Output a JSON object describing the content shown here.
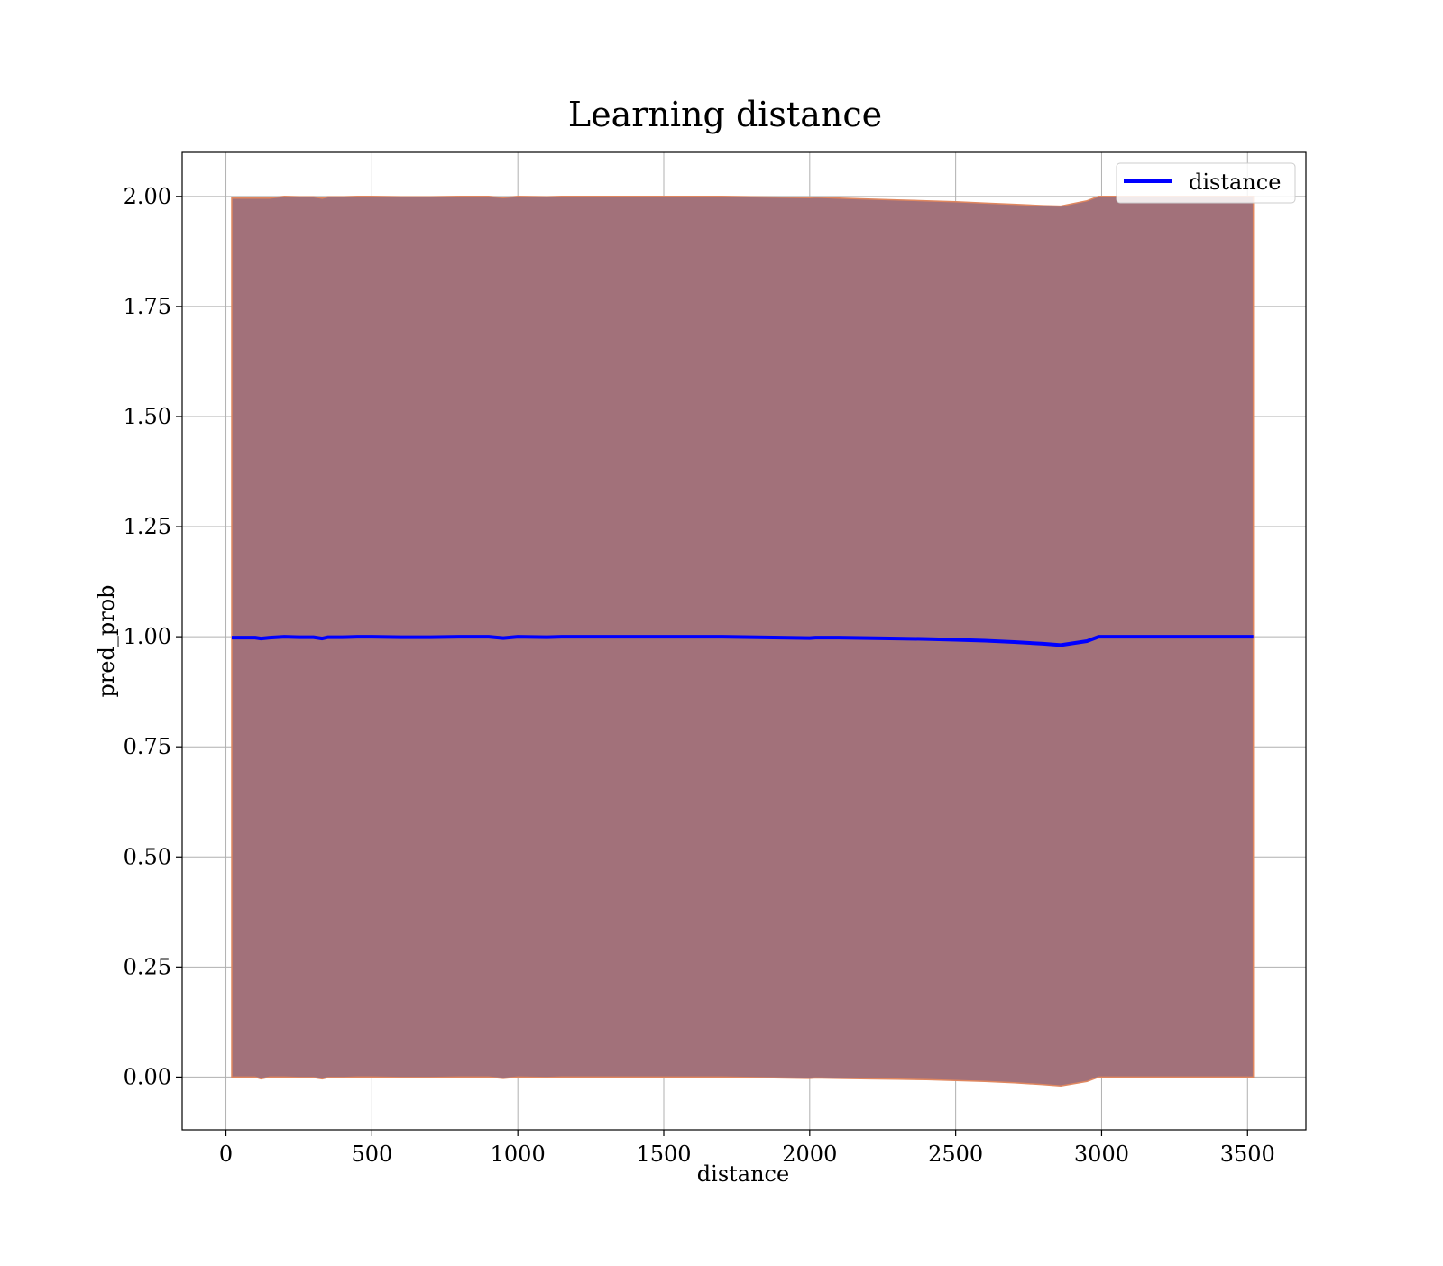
{
  "chart_data": {
    "type": "line",
    "title": "Learning distance",
    "xlabel": "distance",
    "ylabel": "pred_prob",
    "xlim": [
      -150,
      3700
    ],
    "ylim": [
      -0.12,
      2.1
    ],
    "xticks": [
      0,
      500,
      1000,
      1500,
      2000,
      2500,
      3000,
      3500
    ],
    "xtick_labels": [
      "0",
      "500",
      "1000",
      "1500",
      "2000",
      "2500",
      "3000",
      "3500"
    ],
    "yticks": [
      0.0,
      0.25,
      0.5,
      0.75,
      1.0,
      1.25,
      1.5,
      1.75,
      2.0
    ],
    "ytick_labels": [
      "0.00",
      "0.25",
      "0.50",
      "0.75",
      "1.00",
      "1.25",
      "1.50",
      "1.75",
      "2.00"
    ],
    "grid": true,
    "legend": {
      "position": "top-right",
      "entries": [
        "distance"
      ]
    },
    "colors": {
      "line": "#0000ff",
      "band_fill": "#a2717a",
      "band_edge": "#e0875f",
      "grid": "#b0b0b0"
    },
    "series": [
      {
        "name": "distance",
        "x": [
          20,
          100,
          120,
          150,
          200,
          250,
          300,
          330,
          350,
          400,
          450,
          500,
          600,
          700,
          800,
          900,
          950,
          1000,
          1100,
          1150,
          1300,
          1500,
          1700,
          1800,
          1900,
          2000,
          2020,
          2100,
          2200,
          2300,
          2400,
          2500,
          2600,
          2700,
          2800,
          2860,
          2950,
          2990,
          3100,
          3200,
          3300,
          3400,
          3500,
          3520
        ],
        "y": [
          0.998,
          0.998,
          0.996,
          0.998,
          1.0,
          0.999,
          0.999,
          0.996,
          0.999,
          0.999,
          1.0,
          1.0,
          0.999,
          0.999,
          1.0,
          1.0,
          0.997,
          1.0,
          0.999,
          1.0,
          1.0,
          1.0,
          1.0,
          0.999,
          0.998,
          0.997,
          0.998,
          0.998,
          0.997,
          0.996,
          0.995,
          0.993,
          0.991,
          0.988,
          0.984,
          0.981,
          0.99,
          1.0,
          1.0,
          1.0,
          1.0,
          1.0,
          1.0,
          1.0
        ]
      }
    ],
    "band": {
      "lower": [
        0.0,
        0.0,
        -0.004,
        0.0,
        0.0,
        -0.001,
        -0.001,
        -0.004,
        -0.001,
        -0.001,
        0.0,
        0.0,
        -0.001,
        -0.001,
        0.0,
        0.0,
        -0.003,
        0.0,
        -0.001,
        0.0,
        0.0,
        0.0,
        0.0,
        -0.001,
        -0.002,
        -0.003,
        -0.002,
        -0.003,
        -0.004,
        -0.005,
        -0.006,
        -0.008,
        -0.01,
        -0.013,
        -0.017,
        -0.02,
        -0.01,
        0.0,
        0.0,
        0.0,
        0.0,
        0.0,
        0.0,
        0.0
      ],
      "upper": [
        1.996,
        1.996,
        1.996,
        1.996,
        2.0,
        1.999,
        1.999,
        1.996,
        1.999,
        1.999,
        2.0,
        2.0,
        1.999,
        1.999,
        2.0,
        2.0,
        1.997,
        2.0,
        1.999,
        2.0,
        2.0,
        2.0,
        2.0,
        1.999,
        1.998,
        1.997,
        1.998,
        1.996,
        1.994,
        1.992,
        1.99,
        1.988,
        1.985,
        1.982,
        1.979,
        1.978,
        1.99,
        2.0,
        2.0,
        2.0,
        2.0,
        2.0,
        2.0,
        2.0
      ]
    }
  }
}
